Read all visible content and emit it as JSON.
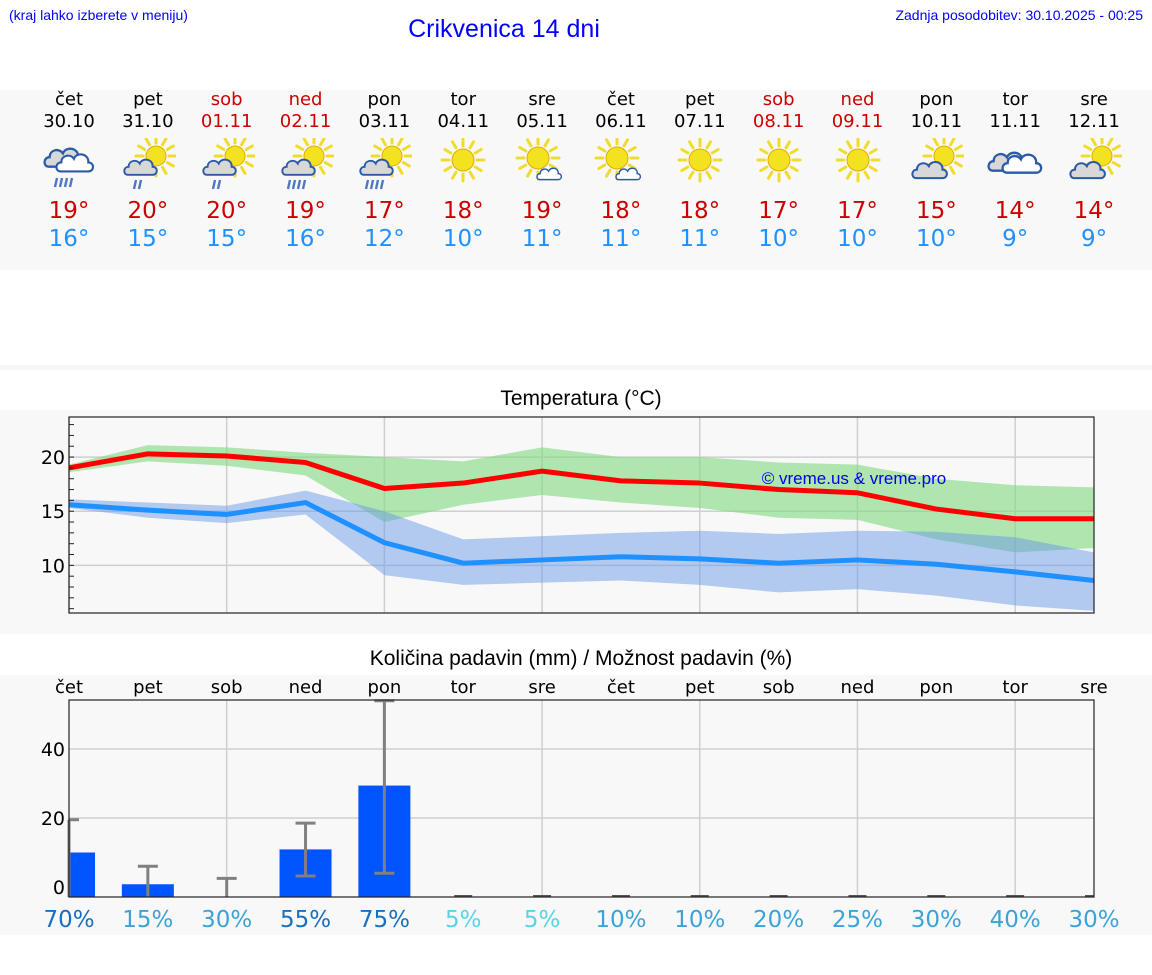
{
  "header": {
    "hint": "(kraj lahko izberete v meniju)",
    "title": "Crikvenica 14 dni",
    "last_update": "Zadnja posodobitev: 30.10.2025 - 00:25"
  },
  "colors": {
    "link_blue": "#0000ff",
    "max_temp": "#cc0000",
    "min_temp": "#1e90ff",
    "max_line": "#ff0000",
    "min_line": "#1e90ff",
    "max_band": "#9fe3a0",
    "min_band": "#a6c3f2",
    "precip_bar": "#0055ff",
    "error_bar": "#808080"
  },
  "days": [
    {
      "name": "čet",
      "date": "30.10",
      "weekend": false,
      "icon": "heavy-cloud-rain-icon",
      "max": "19°",
      "min": "16°"
    },
    {
      "name": "pet",
      "date": "31.10",
      "weekend": false,
      "icon": "sun-cloud-light-rain-icon",
      "max": "20°",
      "min": "15°"
    },
    {
      "name": "sob",
      "date": "01.11",
      "weekend": true,
      "icon": "sun-cloud-light-rain-icon",
      "max": "20°",
      "min": "15°"
    },
    {
      "name": "ned",
      "date": "02.11",
      "weekend": true,
      "icon": "sun-cloud-rain-icon",
      "max": "19°",
      "min": "16°"
    },
    {
      "name": "pon",
      "date": "03.11",
      "weekend": false,
      "icon": "sun-cloud-rain-icon",
      "max": "17°",
      "min": "12°"
    },
    {
      "name": "tor",
      "date": "04.11",
      "weekend": false,
      "icon": "sun-icon",
      "max": "18°",
      "min": "10°"
    },
    {
      "name": "sre",
      "date": "05.11",
      "weekend": false,
      "icon": "sun-small-cloud-icon",
      "max": "19°",
      "min": "11°"
    },
    {
      "name": "čet",
      "date": "06.11",
      "weekend": false,
      "icon": "sun-small-cloud-icon",
      "max": "18°",
      "min": "11°"
    },
    {
      "name": "pet",
      "date": "07.11",
      "weekend": false,
      "icon": "sun-icon",
      "max": "18°",
      "min": "11°"
    },
    {
      "name": "sob",
      "date": "08.11",
      "weekend": true,
      "icon": "sun-icon",
      "max": "17°",
      "min": "10°"
    },
    {
      "name": "ned",
      "date": "09.11",
      "weekend": true,
      "icon": "sun-icon",
      "max": "17°",
      "min": "10°"
    },
    {
      "name": "pon",
      "date": "10.11",
      "weekend": false,
      "icon": "sun-behind-cloud-icon",
      "max": "15°",
      "min": "10°"
    },
    {
      "name": "tor",
      "date": "11.11",
      "weekend": false,
      "icon": "overcast-clouds-icon",
      "max": "14°",
      "min": "9°"
    },
    {
      "name": "sre",
      "date": "12.11",
      "weekend": false,
      "icon": "sun-behind-cloud-icon",
      "max": "14°",
      "min": "9°"
    }
  ],
  "chart_data": [
    {
      "type": "line",
      "title": "Temperatura (°C)",
      "xlabel": "",
      "ylabel": "",
      "x": [
        "30.10",
        "31.10",
        "01.11",
        "02.11",
        "03.11",
        "04.11",
        "05.11",
        "06.11",
        "07.11",
        "08.11",
        "09.11",
        "10.11",
        "11.11",
        "12.11"
      ],
      "ylim": [
        5.6,
        23.7
      ],
      "yticks": [
        10,
        15,
        20
      ],
      "grid": true,
      "watermark": "© vreme.us & vreme.pro",
      "series": [
        {
          "name": "max",
          "color": "#ff0000",
          "values": [
            19.0,
            20.3,
            20.1,
            19.5,
            17.1,
            17.6,
            18.7,
            17.8,
            17.6,
            17.0,
            16.7,
            15.2,
            14.3,
            14.3
          ]
        },
        {
          "name": "max_band_upper",
          "color": "#9fe3a0",
          "values": [
            19.3,
            21.1,
            20.9,
            20.4,
            20.0,
            19.6,
            20.9,
            20.0,
            20.0,
            19.5,
            19.3,
            18.0,
            17.4,
            17.2
          ]
        },
        {
          "name": "max_band_lower",
          "color": "#9fe3a0",
          "values": [
            18.6,
            19.6,
            19.2,
            18.3,
            14.0,
            15.6,
            16.5,
            15.8,
            15.3,
            14.4,
            14.2,
            12.4,
            11.2,
            11.6
          ]
        },
        {
          "name": "min",
          "color": "#1e90ff",
          "values": [
            15.6,
            15.1,
            14.7,
            15.8,
            12.1,
            10.2,
            10.5,
            10.8,
            10.6,
            10.2,
            10.5,
            10.1,
            9.4,
            8.6
          ]
        },
        {
          "name": "min_band_upper",
          "color": "#a6c3f2",
          "values": [
            16.1,
            15.8,
            15.5,
            16.9,
            15.0,
            12.4,
            12.7,
            13.0,
            13.2,
            12.9,
            13.2,
            13.1,
            12.6,
            11.2
          ]
        },
        {
          "name": "min_band_lower",
          "color": "#a6c3f2",
          "values": [
            15.3,
            14.4,
            13.9,
            14.7,
            9.1,
            8.2,
            8.4,
            8.6,
            8.2,
            7.5,
            7.8,
            7.2,
            6.3,
            5.8
          ]
        }
      ]
    },
    {
      "type": "bar",
      "title": "Količina padavin (mm) / Možnost padavin (%)",
      "xlabel": "",
      "ylabel": "",
      "categories": [
        "čet",
        "pet",
        "sob",
        "ned",
        "pon",
        "tor",
        "sre",
        "čet",
        "pet",
        "sob",
        "ned",
        "pon",
        "tor",
        "sre"
      ],
      "ylim": [
        -3,
        54
      ],
      "yticks": [
        0,
        20,
        40
      ],
      "grid": true,
      "series": [
        {
          "name": "precipitation_mm",
          "color": "#0055ff",
          "values": [
            10.0,
            0.8,
            0.0,
            10.9,
            29.4,
            0.0,
            0.0,
            0.0,
            0.0,
            0.0,
            0.0,
            0.0,
            0.0,
            0.0
          ]
        },
        {
          "name": "error_low",
          "color": "#808080",
          "values": [
            0.0,
            0.0,
            0.0,
            3.2,
            4.0,
            0.0,
            0.0,
            0.0,
            0.0,
            0.0,
            0.0,
            0.0,
            0.0,
            0.0
          ]
        },
        {
          "name": "error_high",
          "color": "#808080",
          "values": [
            19.5,
            6.0,
            2.5,
            18.5,
            54.0,
            0.0,
            0.0,
            0.0,
            0.0,
            0.0,
            0.0,
            0.0,
            0.0,
            0.0
          ]
        }
      ],
      "probability": [
        "70%",
        "15%",
        "30%",
        "55%",
        "75%",
        "5%",
        "5%",
        "10%",
        "10%",
        "20%",
        "25%",
        "30%",
        "40%",
        "30%"
      ],
      "probability_colors": [
        "#1a6fbf",
        "#3aa3d9",
        "#3aa3d9",
        "#1a6fbf",
        "#1a6fbf",
        "#5ad3e6",
        "#5ad3e6",
        "#3aa3d9",
        "#3aa3d9",
        "#3aa3d9",
        "#3aa3d9",
        "#3aa3d9",
        "#3aa3d9",
        "#3aa3d9"
      ]
    }
  ]
}
